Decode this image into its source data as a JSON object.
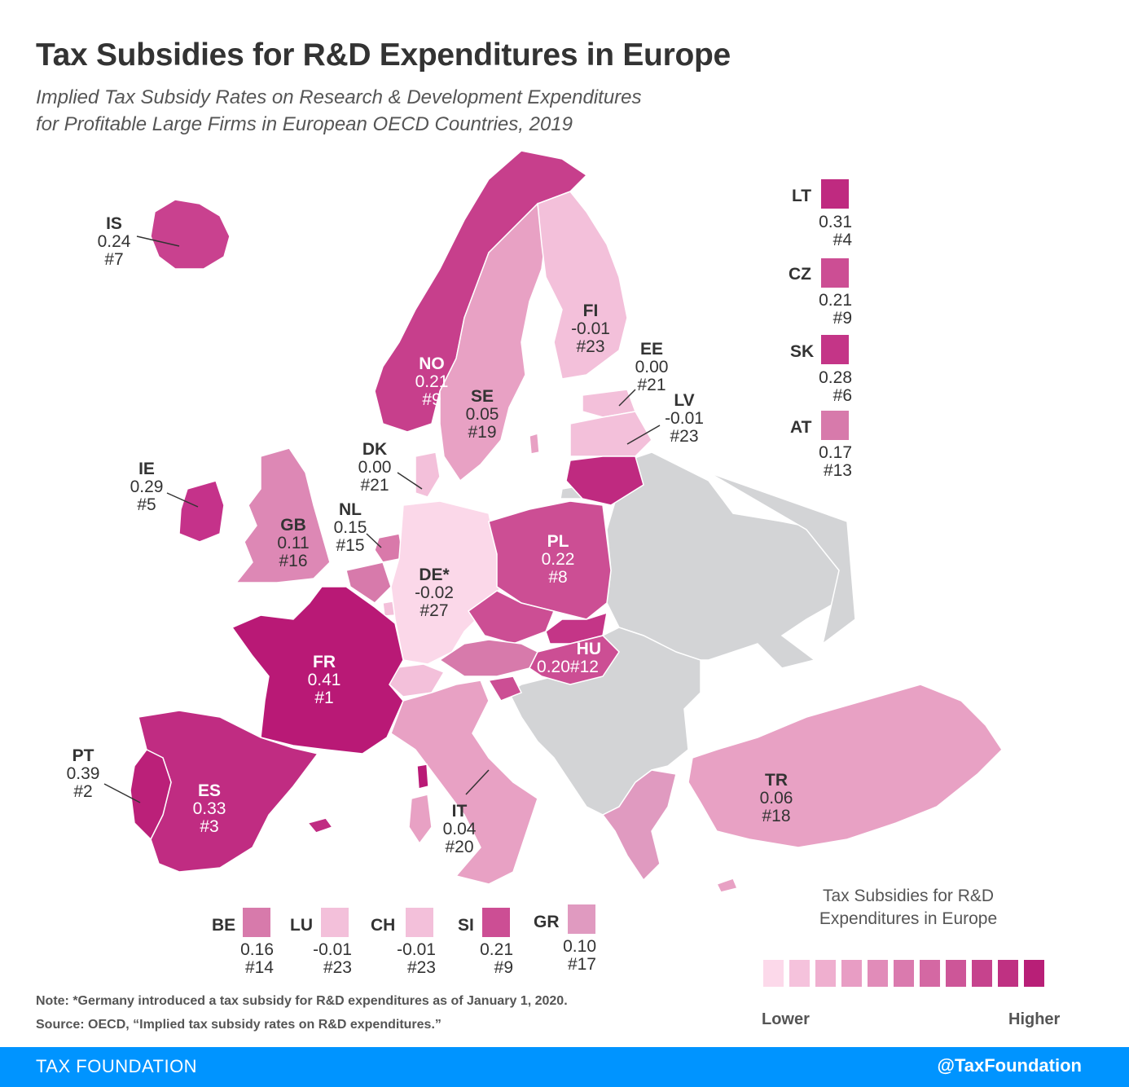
{
  "title": "Tax Subsidies for R&D Expenditures in Europe",
  "subtitle_line1": "Implied Tax Subsidy Rates on Research & Development Expenditures",
  "subtitle_line2": "for Profitable Large Firms in European OECD Countries, 2019",
  "countries": {
    "IS": {
      "code": "IS",
      "value": "0.24",
      "rank": "#7",
      "color": "#c9418f"
    },
    "NO": {
      "code": "NO",
      "value": "0.21",
      "rank": "#9",
      "color": "#c73f8c"
    },
    "SE": {
      "code": "SE",
      "value": "0.05",
      "rank": "#19",
      "color": "#e8a1c4"
    },
    "FI": {
      "code": "FI",
      "value": "-0.01",
      "rank": "#23",
      "color": "#f3c0da"
    },
    "EE": {
      "code": "EE",
      "value": "0.00",
      "rank": "#21",
      "color": "#f3c0da"
    },
    "LV": {
      "code": "LV",
      "value": "-0.01",
      "rank": "#23",
      "color": "#f3c0da"
    },
    "DK": {
      "code": "DK",
      "value": "0.00",
      "rank": "#21",
      "color": "#f3c0da"
    },
    "IE": {
      "code": "IE",
      "value": "0.29",
      "rank": "#5",
      "color": "#c5328a"
    },
    "GB": {
      "code": "GB",
      "value": "0.11",
      "rank": "#16",
      "color": "#dd88b5"
    },
    "NL": {
      "code": "NL",
      "value": "0.15",
      "rank": "#15",
      "color": "#d979aa"
    },
    "DE": {
      "code": "DE*",
      "value": "-0.02",
      "rank": "#27",
      "color": "#fbd8e9"
    },
    "PL": {
      "code": "PL",
      "value": "0.22",
      "rank": "#8",
      "color": "#cc4e94"
    },
    "HU": {
      "code": "HU",
      "value": "0.20",
      "rank": "#12",
      "color": "#cc4e94"
    },
    "FR": {
      "code": "FR",
      "value": "0.41",
      "rank": "#1",
      "color": "#b91976"
    },
    "PT": {
      "code": "PT",
      "value": "0.39",
      "rank": "#2",
      "color": "#bb2079"
    },
    "ES": {
      "code": "ES",
      "value": "0.33",
      "rank": "#3",
      "color": "#c02c82"
    },
    "IT": {
      "code": "IT",
      "value": "0.04",
      "rank": "#20",
      "color": "#e8a1c4"
    },
    "TR": {
      "code": "TR",
      "value": "0.06",
      "rank": "#18",
      "color": "#e8a1c4"
    },
    "LT": {
      "code": "LT",
      "value": "0.31",
      "rank": "#4",
      "color": "#bf2a80"
    },
    "CZ": {
      "code": "CZ",
      "value": "0.21",
      "rank": "#9",
      "color": "#cc4e94"
    },
    "SK": {
      "code": "SK",
      "value": "0.28",
      "rank": "#6",
      "color": "#c43587"
    },
    "AT": {
      "code": "AT",
      "value": "0.17",
      "rank": "#13",
      "color": "#d77aab"
    },
    "BE": {
      "code": "BE",
      "value": "0.16",
      "rank": "#14",
      "color": "#d77aab"
    },
    "LU": {
      "code": "LU",
      "value": "-0.01",
      "rank": "#23",
      "color": "#f3c0da"
    },
    "CH": {
      "code": "CH",
      "value": "-0.01",
      "rank": "#23",
      "color": "#f3c0da"
    },
    "SI": {
      "code": "SI",
      "value": "0.21",
      "rank": "#9",
      "color": "#cc4e94"
    },
    "GR": {
      "code": "GR",
      "value": "0.10",
      "rank": "#17",
      "color": "#e09ac0"
    }
  },
  "non_oecd_color": "#d3d4d6",
  "legend": {
    "title_line1": "Tax Subsidies for R&D",
    "title_line2": "Expenditures in Europe",
    "low_label": "Lower",
    "high_label": "Higher",
    "scale_colors": [
      "#fcd9ea",
      "#f5c2dc",
      "#efafcf",
      "#e89dc4",
      "#e18cb9",
      "#da7aae",
      "#d468a3",
      "#cd5698",
      "#c6438d",
      "#bf3182",
      "#b81f77"
    ]
  },
  "note": "Note: *Germany introduced a tax subsidy for R&D expenditures as of January 1, 2020.",
  "source": "Source: OECD, “Implied tax subsidy rates on R&D expenditures.”",
  "footer": {
    "left": "TAX FOUNDATION",
    "right": "@TaxFoundation"
  }
}
